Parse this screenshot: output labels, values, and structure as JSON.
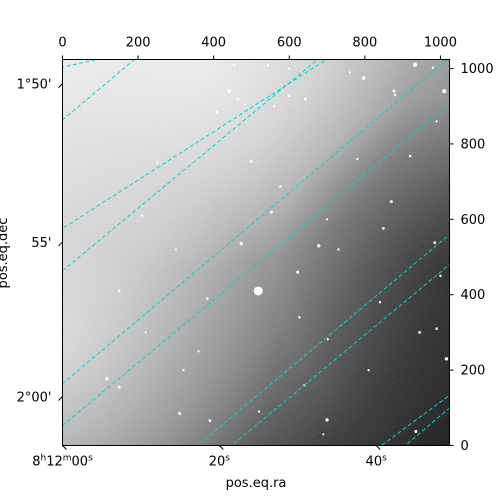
{
  "chart_data": {
    "type": "image",
    "title": "",
    "colormap": "gray",
    "pixel_axes": {
      "top": {
        "range": [
          0,
          1024
        ],
        "ticks": [
          0,
          200,
          400,
          600,
          800,
          1000
        ]
      },
      "right": {
        "range": [
          0,
          1024
        ],
        "ticks": [
          0,
          200,
          400,
          600,
          800,
          1000
        ]
      }
    },
    "world_axes": {
      "xlabel": "pos.eq.ra",
      "ylabel": "pos.eq.dec",
      "bottom_ticks": [
        {
          "label": "8h12m00s",
          "h": "8",
          "m": "12",
          "s": "00",
          "pixel": 0
        },
        {
          "label": "20s",
          "s": "20",
          "pixel": 415
        },
        {
          "label": "40s",
          "s": "40",
          "pixel": 830
        }
      ],
      "left_ticks": [
        {
          "label": "1°50'",
          "pixel": 960
        },
        {
          "label": "55'",
          "pixel": 540
        },
        {
          "label": "2°00'",
          "pixel": 130
        }
      ]
    },
    "grid": {
      "on": true,
      "color": "#00d5d5",
      "style": "dashed",
      "ra_lines": [
        [
          [
            -40,
            995
          ],
          [
            300,
            1070
          ]
        ],
        [
          [
            -40,
            550
          ],
          [
            770,
            1070
          ]
        ],
        [
          [
            -40,
            130
          ],
          [
            1060,
            1060
          ]
        ],
        [
          [
            310,
            -40
          ],
          [
            1060,
            590
          ]
        ],
        [
          [
            790,
            -40
          ],
          [
            1060,
            160
          ]
        ]
      ],
      "dec_lines": [
        [
          [
            -40,
            830
          ],
          [
            245,
            1070
          ]
        ],
        [
          [
            -40,
            430
          ],
          [
            730,
            1070
          ]
        ],
        [
          [
            -40,
            20
          ],
          [
            1060,
            935
          ]
        ],
        [
          [
            400,
            -40
          ],
          [
            1060,
            510
          ]
        ],
        [
          [
            860,
            -40
          ],
          [
            1060,
            130
          ]
        ]
      ]
    },
    "stars": [
      [
        700,
        68,
        1.6
      ],
      [
        518,
        410,
        4.5
      ],
      [
        473,
        536,
        1.7
      ],
      [
        553,
        619,
        1.4
      ],
      [
        499,
        753,
        1.5
      ],
      [
        577,
        687,
        1.3
      ],
      [
        622,
        460,
        1.5
      ],
      [
        678,
        530,
        1.7
      ],
      [
        730,
        520,
        1.2
      ],
      [
        849,
        576,
        1.4
      ],
      [
        933,
        1010,
        2.0
      ],
      [
        1010,
        940,
        2.0
      ],
      [
        1040,
        1018,
        1.5
      ],
      [
        797,
        975,
        1.8
      ],
      [
        877,
        940,
        1.5
      ],
      [
        600,
        928,
        1.5
      ],
      [
        543,
        1008,
        1.3
      ],
      [
        441,
        940,
        1.5
      ],
      [
        465,
        918,
        1.2
      ],
      [
        483,
        905,
        1.2
      ],
      [
        643,
        919,
        1.4
      ],
      [
        980,
        1002,
        1.2
      ],
      [
        870,
        647,
        1.5
      ],
      [
        985,
        538,
        1.4
      ],
      [
        920,
        768,
        1.3
      ],
      [
        945,
        300,
        1.4
      ],
      [
        1016,
        230,
        1.7
      ],
      [
        935,
        37,
        1.5
      ],
      [
        990,
        310,
        1.3
      ],
      [
        627,
        340,
        1.2
      ],
      [
        383,
        390,
        1.3
      ],
      [
        117,
        177,
        1.7
      ],
      [
        150,
        155,
        1.4
      ],
      [
        310,
        85,
        1.4
      ],
      [
        390,
        66,
        1.4
      ],
      [
        600,
        1000,
        1.2
      ],
      [
        760,
        990,
        1.1
      ],
      [
        408,
        885,
        1.2
      ],
      [
        840,
        380,
        1.2
      ],
      [
        320,
        200,
        1.1
      ],
      [
        210,
        610,
        1.2
      ],
      [
        1000,
        450,
        1.2
      ],
      [
        702,
        282,
        1.1
      ],
      [
        360,
        250,
        1.1
      ],
      [
        250,
        750,
        1.0
      ],
      [
        640,
        160,
        1.2
      ],
      [
        810,
        200,
        1.1
      ],
      [
        520,
        90,
        1.1
      ],
      [
        690,
        30,
        1.0
      ],
      [
        220,
        300,
        1.0
      ],
      [
        150,
        410,
        1.3
      ],
      [
        700,
        600,
        1.1
      ],
      [
        880,
        930,
        1.2
      ],
      [
        455,
        1010,
        1.0
      ],
      [
        990,
        860,
        1.1
      ],
      [
        300,
        520,
        1.0
      ],
      [
        780,
        760,
        1.1
      ],
      [
        560,
        900,
        1.0
      ]
    ]
  }
}
